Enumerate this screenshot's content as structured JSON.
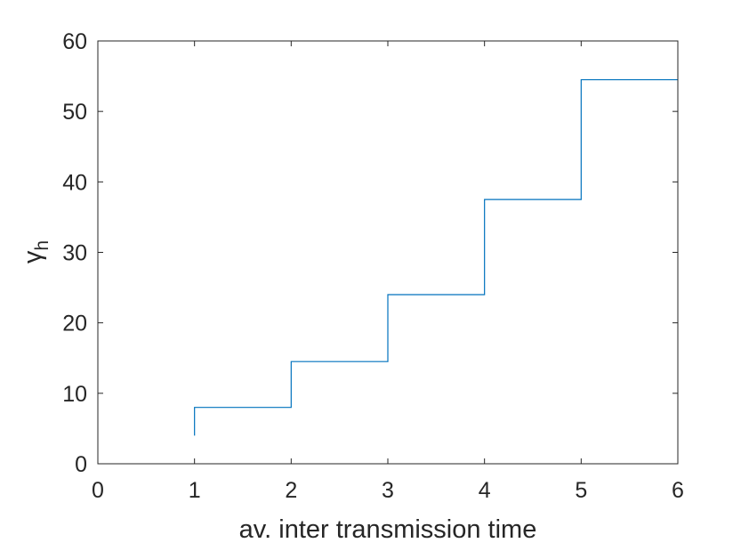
{
  "chart_data": {
    "type": "line",
    "step": true,
    "title": "",
    "xlabel": "av. inter transmission time",
    "ylabel": "γ",
    "ylabel_subscript": "h",
    "xlim": [
      0,
      6
    ],
    "ylim": [
      0,
      60
    ],
    "xticks": [
      "0",
      "1",
      "2",
      "3",
      "4",
      "5",
      "6"
    ],
    "yticks": [
      "0",
      "10",
      "20",
      "30",
      "40",
      "50",
      "60"
    ],
    "grid": false,
    "legend": "none",
    "line_color": "#0072bd",
    "series": [
      {
        "x": [
          1,
          1,
          2,
          2,
          3,
          3,
          4,
          4,
          5,
          5,
          6
        ],
        "y": [
          4,
          8,
          8,
          14.5,
          14.5,
          24,
          24,
          37.5,
          37.5,
          54.5,
          54.5
        ]
      }
    ]
  }
}
